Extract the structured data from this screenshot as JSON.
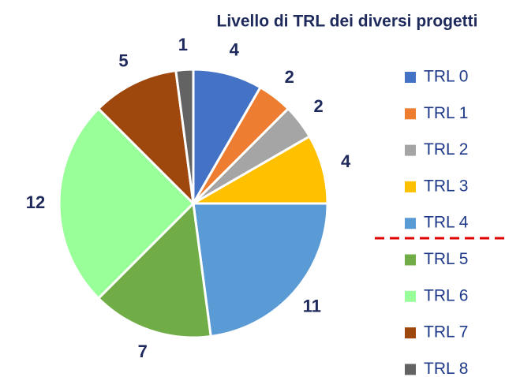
{
  "chart_data": {
    "type": "pie",
    "title": "Livello di TRL dei diversi progetti",
    "categories": [
      "TRL 0",
      "TRL 1",
      "TRL 2",
      "TRL 3",
      "TRL 4",
      "TRL 5",
      "TRL 6",
      "TRL 7",
      "TRL 8"
    ],
    "values": [
      4,
      2,
      2,
      4,
      11,
      7,
      12,
      5,
      1
    ],
    "colors": [
      "#4472c4",
      "#ed7d31",
      "#a5a5a5",
      "#ffc000",
      "#5b9bd5",
      "#70ad47",
      "#99ff99",
      "#9e480e",
      "#636363"
    ],
    "legend": "right"
  }
}
